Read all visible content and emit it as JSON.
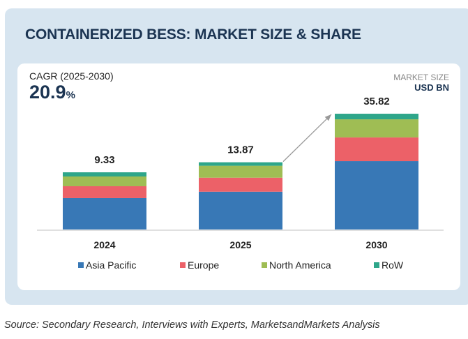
{
  "title": "CONTAINERIZED BESS: MARKET SIZE & SHARE",
  "cagr": {
    "label": "CAGR (2025-2030)",
    "value": "20.9",
    "unit": "%"
  },
  "market_size": {
    "label": "MARKET SIZE",
    "unit": "USD BN"
  },
  "source": "Source: Secondary Research, Interviews with Experts, MarketsandMarkets Analysis",
  "chart_data": {
    "type": "bar",
    "stacked": true,
    "categories": [
      "2024",
      "2025",
      "2030"
    ],
    "totals": [
      9.33,
      13.87,
      35.82
    ],
    "total_labels": [
      "9.33",
      "13.87",
      "35.82"
    ],
    "series": [
      {
        "name": "Asia Pacific",
        "color": "#3878b6",
        "values": [
          5.12,
          7.8,
          21.14
        ]
      },
      {
        "name": "Europe",
        "color": "#ec6168",
        "values": [
          1.93,
          2.89,
          7.33
        ]
      },
      {
        "name": "North America",
        "color": "#9fbd54",
        "values": [
          1.59,
          2.46,
          5.61
        ]
      },
      {
        "name": "RoW",
        "color": "#2ea68a",
        "values": [
          0.68,
          0.72,
          1.73
        ]
      }
    ],
    "arrow": {
      "from": "2025",
      "to": "2030"
    },
    "legend_position": "bottom",
    "grid": false
  }
}
